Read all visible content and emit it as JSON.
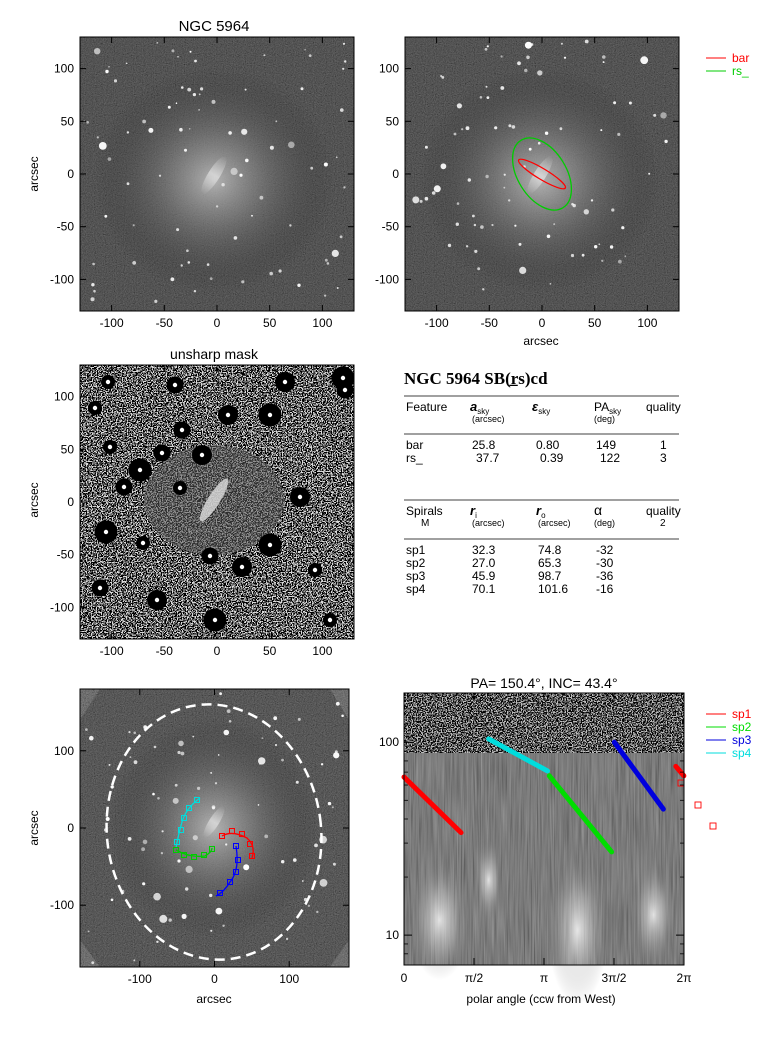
{
  "panel1": {
    "title": "NGC 5964",
    "ylabel": "arcsec",
    "xticks": [
      "-100",
      "-50",
      "0",
      "50",
      "100"
    ],
    "yticks": [
      "100",
      "50",
      "0",
      "-50",
      "-100"
    ]
  },
  "panel2": {
    "xlabel": "arcsec",
    "xticks": [
      "-100",
      "-50",
      "0",
      "50",
      "100"
    ],
    "yticks": [
      "100",
      "50",
      "0",
      "-50",
      "-100"
    ],
    "legend": [
      {
        "label": "bar",
        "color": "#ff0000"
      },
      {
        "label": "rs_",
        "color": "#00cc00"
      }
    ],
    "ellipses": [
      {
        "name": "bar",
        "a_arcsec": 25.8,
        "eps": 0.8,
        "pa_deg": 149,
        "color": "#ff0000"
      },
      {
        "name": "rs_",
        "a_arcsec": 37.7,
        "eps": 0.39,
        "pa_deg": 122,
        "color": "#00cc00"
      }
    ]
  },
  "panel3": {
    "title": "unsharp mask",
    "ylabel": "arcsec",
    "xticks": [
      "-100",
      "-50",
      "0",
      "50",
      "100"
    ],
    "yticks": [
      "100",
      "50",
      "0",
      "-50",
      "-100"
    ]
  },
  "info": {
    "title": "NGC 5964  SB(r̲s)cd",
    "feature_headers": {
      "feature": "Feature",
      "a": "a",
      "a_sub": "sky",
      "a_unit": "(arcsec)",
      "eps": "ε",
      "eps_sub": "sky",
      "pa": "PA",
      "pa_sub": "sky",
      "pa_unit": "(deg)",
      "quality": "quality"
    },
    "features": [
      {
        "name": "bar",
        "a": "25.8",
        "eps": "0.80",
        "pa": "149",
        "quality": "1"
      },
      {
        "name": "rs_",
        "a": "37.7",
        "eps": "0.39",
        "pa": "122",
        "quality": "3"
      }
    ],
    "spiral_headers": {
      "spirals": "Spirals",
      "m": "M",
      "ri": "r",
      "ri_sub": "i",
      "ri_unit": "(arcsec)",
      "ro": "r",
      "ro_sub": "o",
      "ro_unit": "(arcsec)",
      "alpha": "α",
      "alpha_unit": "(deg)",
      "quality": "quality",
      "quality_val": "2"
    },
    "spirals": [
      {
        "name": "sp1",
        "ri": "32.3",
        "ro": "74.8",
        "alpha": "-32"
      },
      {
        "name": "sp2",
        "ri": "27.0",
        "ro": "65.3",
        "alpha": "-30"
      },
      {
        "name": "sp3",
        "ri": "45.9",
        "ro": "98.7",
        "alpha": "-36"
      },
      {
        "name": "sp4",
        "ri": "70.1",
        "ro": "101.6",
        "alpha": "-16"
      }
    ]
  },
  "panel5": {
    "xlabel": "arcsec",
    "ylabel": "arcsec",
    "xticks": [
      "-100",
      "0",
      "100"
    ],
    "yticks": [
      "100",
      "0",
      "-100"
    ]
  },
  "panel6": {
    "title": "PA= 150.4°, INC=  43.4°",
    "xlabel": "polar angle (ccw from West)",
    "xticks": [
      "0",
      "π/2",
      "π",
      "3π/2",
      "2π"
    ],
    "yticks": [
      "100",
      "10"
    ],
    "legend": [
      {
        "label": "sp1",
        "color": "#ff0000"
      },
      {
        "label": "sp2",
        "color": "#00dd00"
      },
      {
        "label": "sp3",
        "color": "#0000dd"
      },
      {
        "label": "sp4",
        "color": "#00dddd"
      }
    ]
  },
  "chart_data": [
    {
      "type": "scatter",
      "title": "PA= 150.4°, INC=  43.4°",
      "xlabel": "polar angle (ccw from West)",
      "ylabel": "",
      "xlim": [
        0,
        6.2832
      ],
      "ylim": [
        7,
        180
      ],
      "log_y": true,
      "series": [
        {
          "name": "sp1",
          "color": "#ff0000",
          "x": [
            0.0,
            1.28
          ],
          "y": [
            66,
            34
          ]
        },
        {
          "name": "sp1",
          "color": "#ff0000",
          "x": [
            6.1,
            6.28
          ],
          "y": [
            75,
            67
          ]
        },
        {
          "name": "sp2",
          "color": "#00dd00",
          "x": [
            3.26,
            4.66
          ],
          "y": [
            67,
            27
          ]
        },
        {
          "name": "sp3",
          "color": "#0000dd",
          "x": [
            4.72,
            5.82
          ],
          "y": [
            100,
            45
          ]
        },
        {
          "name": "sp4",
          "color": "#00dddd",
          "x": [
            1.9,
            3.22
          ],
          "y": [
            104,
            71
          ]
        }
      ]
    }
  ]
}
